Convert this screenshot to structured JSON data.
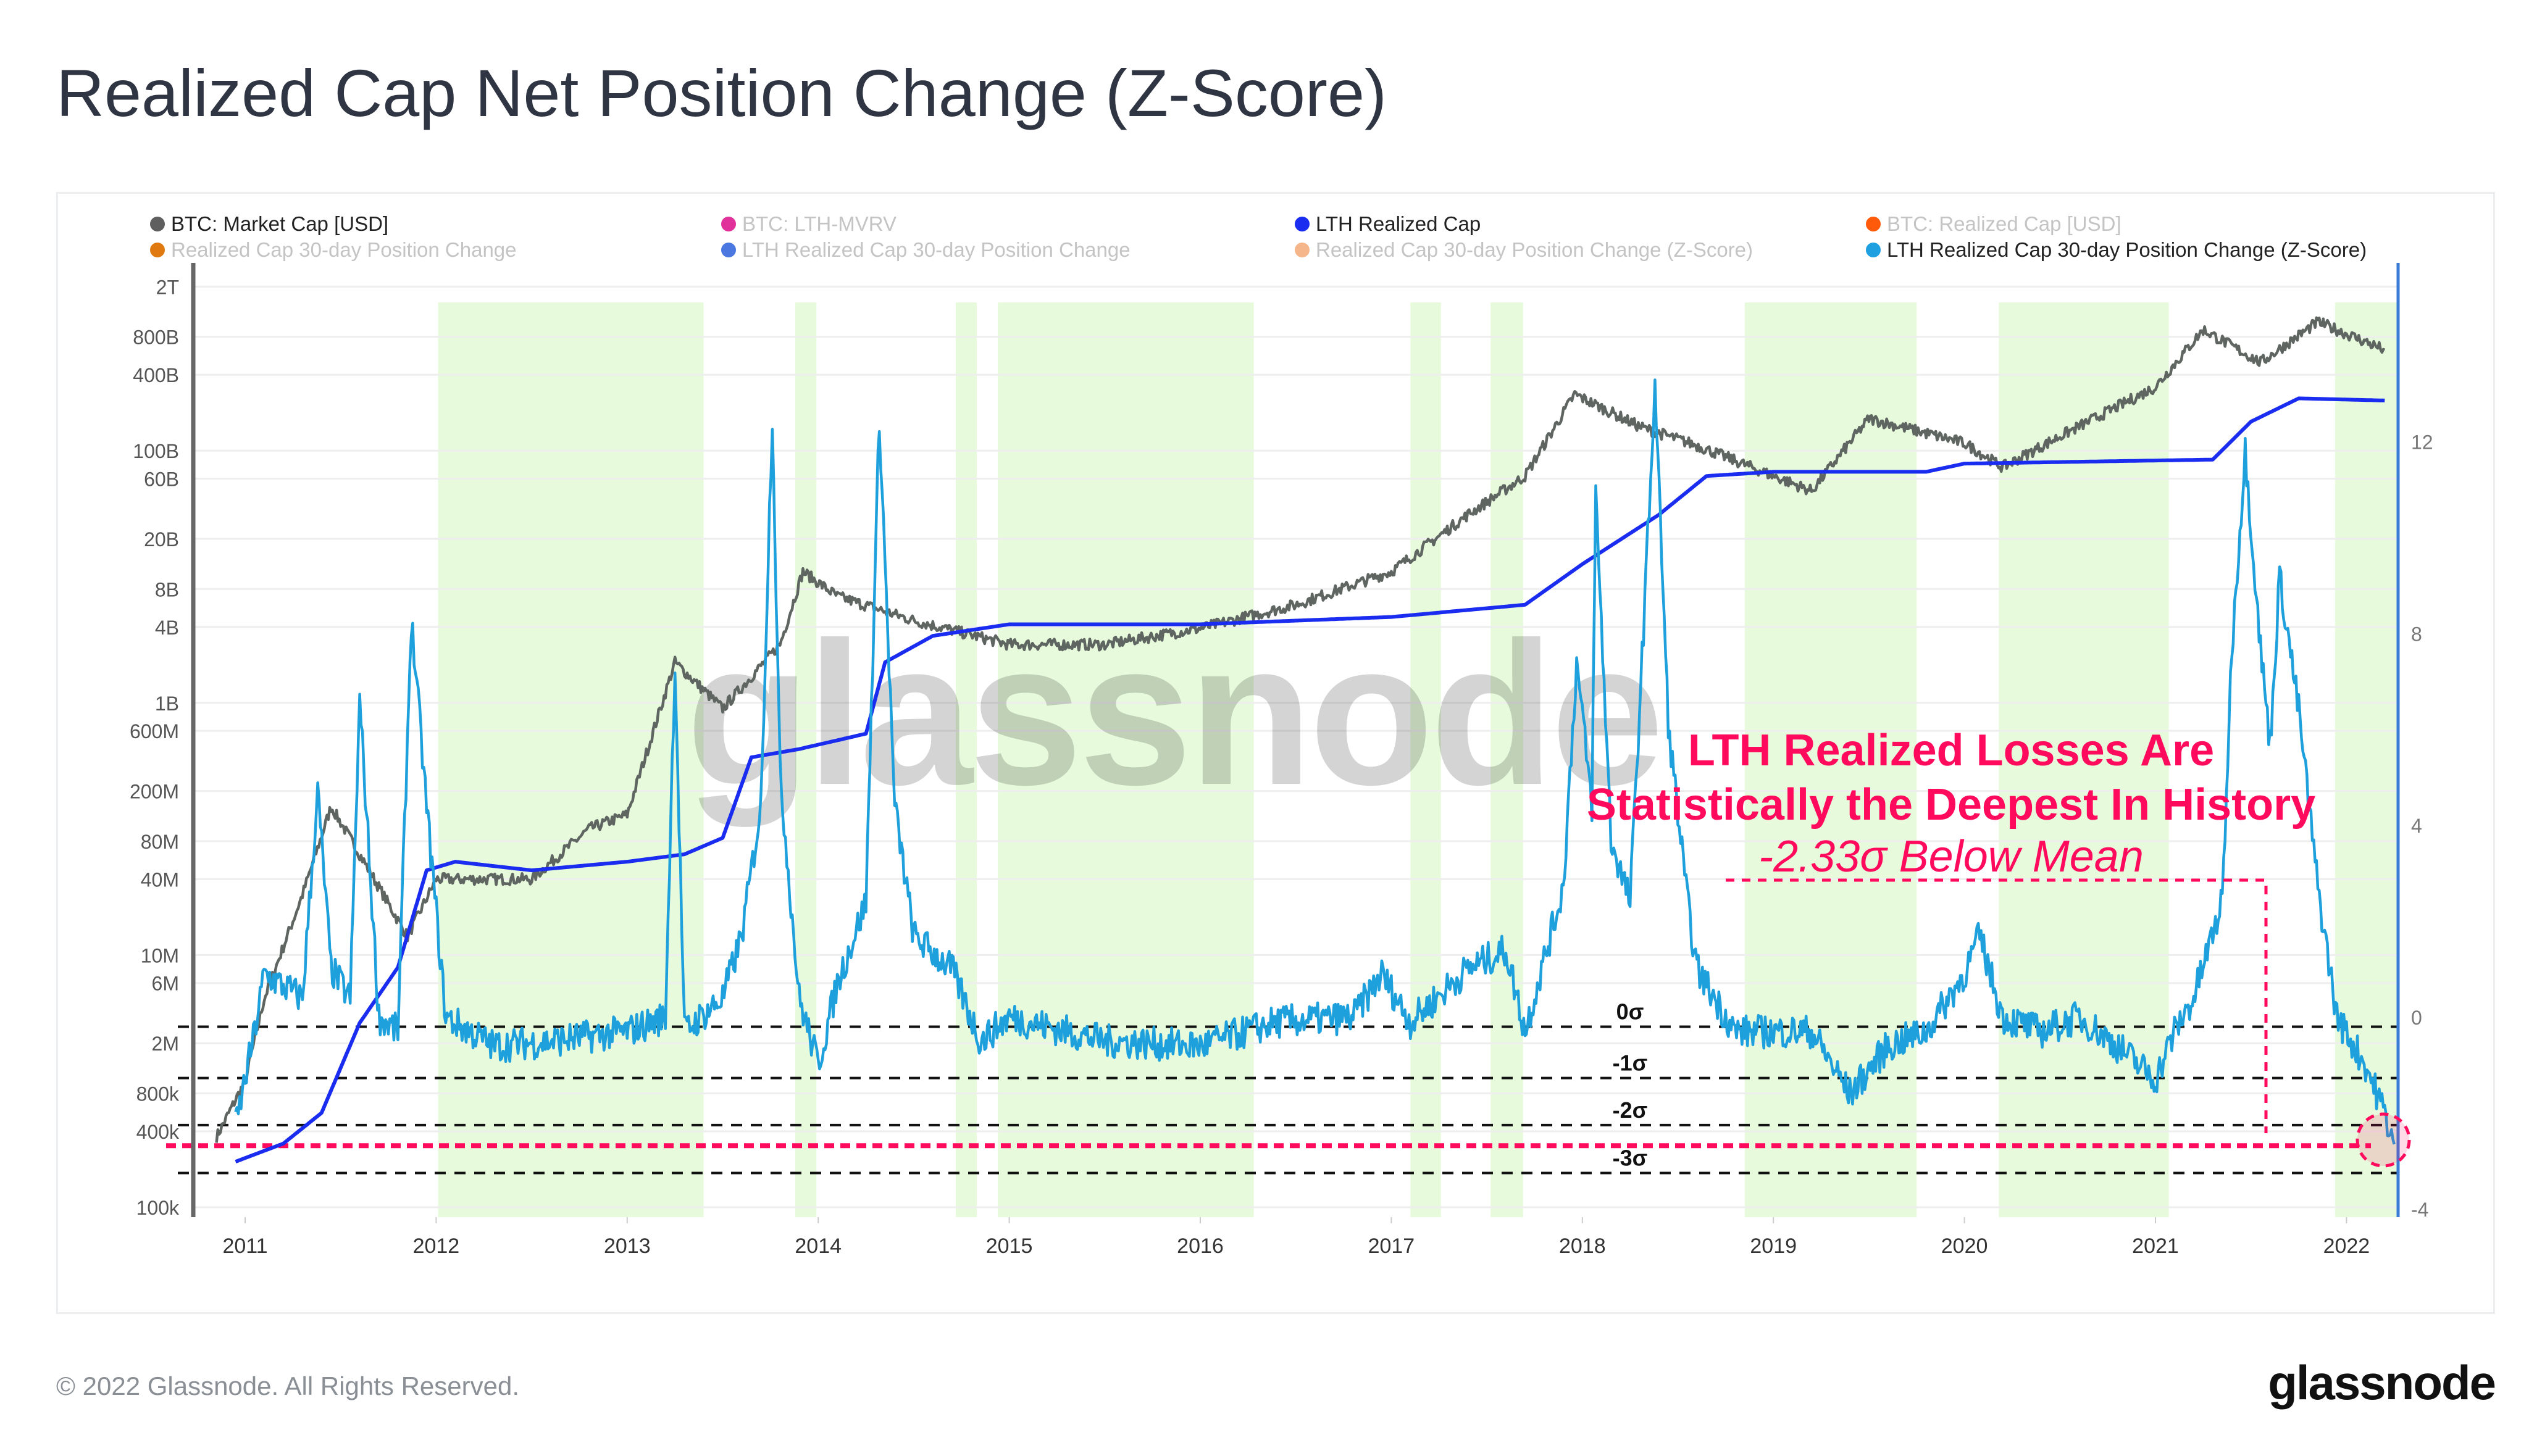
{
  "title": "Realized Cap Net Position Change (Z-Score)",
  "footer": "© 2022 Glassnode. All Rights Reserved.",
  "logo": "glassnode",
  "watermark": "glassnode",
  "legend": [
    {
      "label": "BTC: Market Cap [USD]",
      "color": "#5f5f5f",
      "active": true
    },
    {
      "label": "BTC: LTH-MVRV",
      "color": "#e0329a",
      "active": false
    },
    {
      "label": "LTH Realized Cap",
      "color": "#1a2cf0",
      "active": true
    },
    {
      "label": "BTC: Realized Cap [USD]",
      "color": "#ff5a0a",
      "active": false
    },
    {
      "label": "Realized Cap 30-day Position Change",
      "color": "#e07a10",
      "active": false
    },
    {
      "label": "LTH Realized Cap 30-day Position Change",
      "color": "#4a78e0",
      "active": false
    },
    {
      "label": "Realized Cap 30-day Position Change (Z-Score)",
      "color": "#f4b68a",
      "active": false
    },
    {
      "label": "LTH Realized Cap 30-day Position Change (Z-Score)",
      "color": "#1ea0e0",
      "active": true
    }
  ],
  "annotation": {
    "line1": "LTH Realized Losses Are",
    "line2": "Statistically the Deepest In History",
    "line3": "-2.33σ Below Mean",
    "color": "#ff0a5c"
  },
  "chart_data": {
    "type": "line",
    "x_ticks": [
      "2011",
      "2012",
      "2013",
      "2014",
      "2015",
      "2016",
      "2017",
      "2018",
      "2019",
      "2020",
      "2021",
      "2022"
    ],
    "xlim": [
      2010.72,
      2022.27
    ],
    "left_axis": {
      "scale": "log",
      "ylim": [
        100000,
        2000000000000
      ],
      "ticks": [
        {
          "label": "2T",
          "value": 2000000000000.0
        },
        {
          "label": "800B",
          "value": 800000000000.0
        },
        {
          "label": "400B",
          "value": 400000000000.0
        },
        {
          "label": "100B",
          "value": 100000000000.0
        },
        {
          "label": "60B",
          "value": 60000000000.0
        },
        {
          "label": "20B",
          "value": 20000000000.0
        },
        {
          "label": "8B",
          "value": 8000000000.0
        },
        {
          "label": "4B",
          "value": 4000000000.0
        },
        {
          "label": "1B",
          "value": 1000000000.0
        },
        {
          "label": "600M",
          "value": 600000000.0
        },
        {
          "label": "200M",
          "value": 200000000.0
        },
        {
          "label": "80M",
          "value": 80000000.0
        },
        {
          "label": "40M",
          "value": 40000000.0
        },
        {
          "label": "10M",
          "value": 10000000.0
        },
        {
          "label": "6M",
          "value": 6000000.0
        },
        {
          "label": "2M",
          "value": 2000000.0
        },
        {
          "label": "800k",
          "value": 800000.0
        },
        {
          "label": "400k",
          "value": 400000.0
        },
        {
          "label": "100k",
          "value": 100000.0
        }
      ]
    },
    "right_axis": {
      "scale": "linear",
      "ylim": [
        -4,
        15.5
      ],
      "ticks": [
        "12",
        "8",
        "4",
        "0",
        "-4"
      ]
    },
    "grid": true,
    "legend_placement": "top",
    "shaded_periods": [
      [
        2012.01,
        2013.4
      ],
      [
        2013.88,
        2013.99
      ],
      [
        2014.72,
        2014.83
      ],
      [
        2014.94,
        2016.28
      ],
      [
        2017.1,
        2017.26
      ],
      [
        2017.52,
        2017.69
      ],
      [
        2018.85,
        2019.75
      ],
      [
        2020.18,
        2021.07
      ],
      [
        2021.94,
        2022.27
      ]
    ],
    "shade_color": "#e7fbdc",
    "sigma_lines": [
      {
        "label": "0σ",
        "value": -0.2
      },
      {
        "label": "-1σ",
        "value": -1.27
      },
      {
        "label": "-2σ",
        "value": -2.25
      },
      {
        "label": "-3σ",
        "value": -3.25
      }
    ],
    "highlight_level": {
      "label": "-2.33σ",
      "value": -2.68
    },
    "series": [
      {
        "name": "BTC: Market Cap [USD]",
        "axis": "left",
        "color": "#5f6662",
        "x": [
          2010.85,
          2011.0,
          2011.1,
          2011.3,
          2011.45,
          2011.6,
          2011.85,
          2012.0,
          2012.5,
          2012.8,
          2013.0,
          2013.25,
          2013.5,
          2013.8,
          2013.92,
          2014.1,
          2014.5,
          2015.0,
          2015.5,
          2016.0,
          2016.5,
          2017.0,
          2017.4,
          2017.7,
          2017.96,
          2018.3,
          2018.6,
          2019.0,
          2019.2,
          2019.5,
          2020.0,
          2020.2,
          2020.5,
          2021.0,
          2021.25,
          2021.55,
          2021.85,
          2022.2
        ],
        "y": [
          360000,
          1000000,
          4500000,
          30000000,
          150000000,
          63000000,
          14000000,
          40000000,
          40000000,
          100000000,
          130000000,
          2100000000,
          900000000,
          2900000000,
          11000000000,
          7000000000,
          4500000000,
          2900000000,
          2900000000,
          3900000000,
          6000000000,
          11000000000,
          31000000000,
          63000000000,
          280000000000,
          155000000000,
          110000000000,
          63000000000,
          48000000000,
          180000000000,
          115000000000,
          74000000000,
          130000000000,
          320000000000,
          910000000000,
          500000000000,
          1050000000000,
          630000000000
        ]
      },
      {
        "name": "LTH Realized Cap",
        "axis": "left",
        "color": "#1a2cf0",
        "x": [
          2010.95,
          2011.2,
          2011.4,
          2011.6,
          2011.8,
          2011.95,
          2012.1,
          2012.5,
          2013.0,
          2013.3,
          2013.5,
          2013.65,
          2013.9,
          2014.25,
          2014.35,
          2014.6,
          2015.0,
          2016.0,
          2017.0,
          2017.7,
          2018.0,
          2018.4,
          2018.65,
          2019.0,
          2019.8,
          2020.0,
          2021.3,
          2021.5,
          2021.75,
          2022.2
        ],
        "y": [
          230000,
          320000,
          560000,
          2900000,
          8000000,
          47000000,
          55000000,
          47000000,
          55000000,
          63000000,
          85000000,
          370000000,
          430000000,
          570000000,
          2100000000,
          3400000000,
          4200000000,
          4200000000,
          4800000000,
          6000000000,
          12600000000,
          31000000000,
          63000000000,
          68000000000,
          68000000000,
          79000000000,
          85000000000,
          170000000000,
          260000000000,
          250000000000
        ]
      },
      {
        "name": "LTH Realized Cap 30-day Position Change (Z-Score)",
        "axis": "right",
        "color": "#1ea0dc",
        "x": [
          2010.95,
          2011.05,
          2011.1,
          2011.3,
          2011.38,
          2011.45,
          2011.55,
          2011.6,
          2011.7,
          2011.8,
          2011.87,
          2011.95,
          2012.05,
          2012.3,
          2012.6,
          2013.0,
          2013.2,
          2013.25,
          2013.3,
          2013.5,
          2013.6,
          2013.7,
          2013.76,
          2013.8,
          2013.9,
          2014.0,
          2014.1,
          2014.25,
          2014.32,
          2014.4,
          2014.5,
          2014.7,
          2014.85,
          2015.0,
          2015.5,
          2016.0,
          2016.4,
          2016.8,
          2016.95,
          2017.1,
          2017.4,
          2017.6,
          2017.7,
          2017.9,
          2017.97,
          2018.05,
          2018.07,
          2018.15,
          2018.25,
          2018.32,
          2018.38,
          2018.45,
          2018.55,
          2018.6,
          2018.8,
          2019.0,
          2019.2,
          2019.4,
          2019.6,
          2019.8,
          2020.0,
          2020.08,
          2020.2,
          2020.4,
          2020.6,
          2020.8,
          2021.0,
          2021.1,
          2021.2,
          2021.35,
          2021.4,
          2021.47,
          2021.55,
          2021.6,
          2021.65,
          2021.75,
          2021.85,
          2021.95,
          2022.1,
          2022.2,
          2022.25
        ],
        "y": [
          -2.3,
          -0.3,
          0.9,
          0.4,
          4.7,
          1.0,
          0.4,
          6.6,
          0.0,
          -0.3,
          8.3,
          4.4,
          0.0,
          -0.6,
          -0.5,
          -0.3,
          0.0,
          7.4,
          -0.3,
          0.4,
          1.7,
          4.4,
          12.6,
          5.1,
          0.4,
          -1.0,
          0.7,
          2.4,
          12.5,
          4.4,
          1.7,
          1.0,
          -0.5,
          0.0,
          -0.5,
          -0.6,
          -0.1,
          0.0,
          0.9,
          -0.1,
          1.0,
          1.4,
          -0.3,
          2.7,
          7.4,
          4.4,
          10.9,
          3.7,
          2.4,
          8.1,
          13.2,
          6.1,
          2.4,
          1.0,
          -0.3,
          -0.3,
          -0.3,
          -1.6,
          -0.6,
          -0.3,
          0.9,
          1.7,
          0.0,
          -0.3,
          0.0,
          -0.6,
          -1.3,
          -0.3,
          0.4,
          2.4,
          7.7,
          11.8,
          7.7,
          5.7,
          9.2,
          6.4,
          2.7,
          0.0,
          -1.0,
          -2.0,
          -2.65
        ]
      }
    ]
  }
}
